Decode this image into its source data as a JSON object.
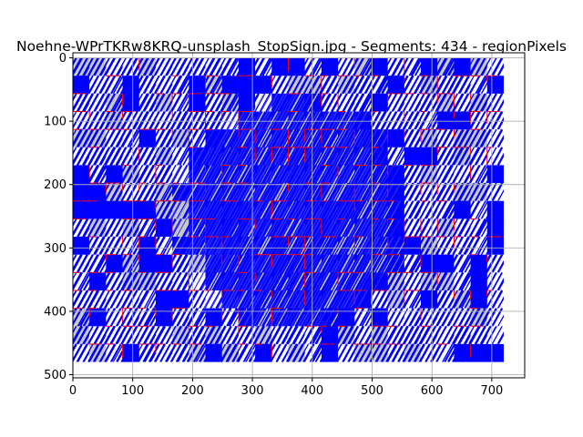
{
  "chart_data": {
    "type": "heatmap",
    "title": "Noehne-WPrTKRw8KRQ-unsplash_StopSign.jpg - Segments: 434 - regionPixels",
    "xlabel": "",
    "ylabel": "",
    "xlim": [
      0,
      755
    ],
    "ylim": [
      505,
      -8
    ],
    "y_inverted": true,
    "grid": true,
    "x_ticks": [
      0,
      100,
      200,
      300,
      400,
      500,
      600,
      700
    ],
    "y_ticks": [
      0,
      100,
      200,
      300,
      400,
      500
    ],
    "image_extent": {
      "x": [
        0,
        720
      ],
      "y": [
        0,
        480
      ]
    },
    "segment_grid": {
      "columns": 26,
      "rows": 17
    },
    "dense_region": {
      "x": [
        200,
        560
      ],
      "y": [
        70,
        420
      ]
    },
    "colors": {
      "segment_stroke": "#0000ff",
      "boundary": "#ff0000",
      "light_fill": "#ffffff",
      "gray_fill": "#c8c8c8",
      "grid": "#b0b0b0"
    }
  }
}
